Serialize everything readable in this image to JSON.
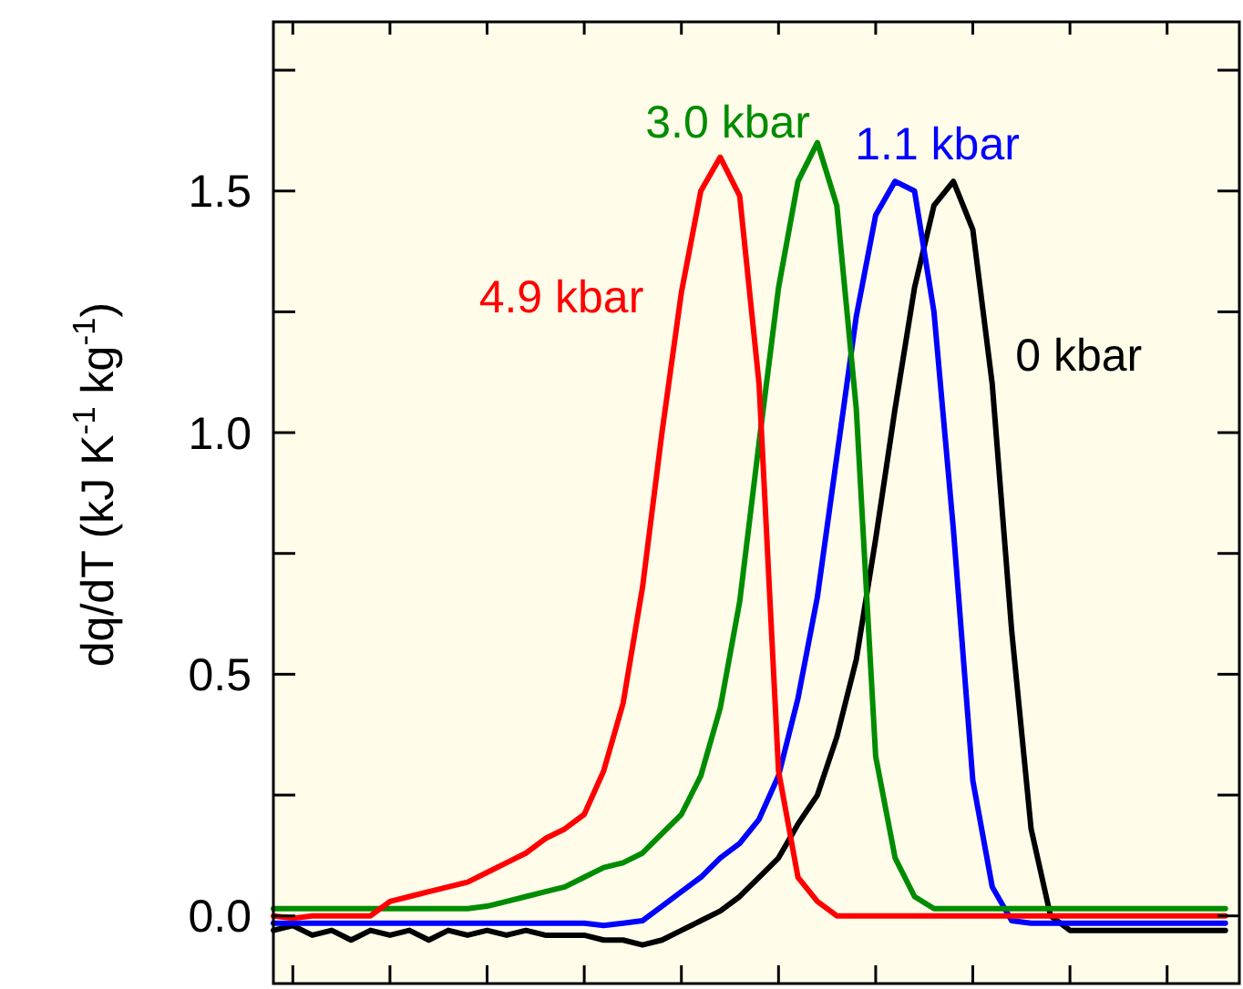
{
  "chart_data": {
    "type": "line",
    "ylabel": "dq/dT (kJ K$^{-1}$ kg$^{-1}$)",
    "categories": [
      null,
      null,
      null,
      null,
      null,
      null,
      null,
      null,
      null,
      null,
      null,
      null,
      null,
      null,
      null,
      null,
      null,
      null,
      null,
      null,
      null,
      null,
      null,
      null,
      null,
      null,
      null,
      null,
      null,
      null,
      null,
      null,
      null,
      null,
      null,
      null,
      null,
      null,
      null,
      null,
      null,
      null,
      null,
      null,
      null,
      null,
      null,
      null,
      null,
      null
    ],
    "ylim": [
      -0.14,
      1.85
    ],
    "yticks": [
      {
        "value": 0,
        "label": "0.0"
      },
      {
        "value": 0.25,
        "label": null
      },
      {
        "value": 0.5,
        "label": "0.5"
      },
      {
        "value": 0.75,
        "label": null
      },
      {
        "value": 1,
        "label": "1.0"
      },
      {
        "value": 1.25,
        "label": null
      },
      {
        "value": 1.5,
        "label": "1.5"
      },
      {
        "value": 1.75,
        "label": null
      }
    ],
    "tick_labels": "y",
    "grid": false,
    "marker": "none",
    "line_style": "solid",
    "series": [
      {
        "name": "0 kbar",
        "color": "#000000",
        "values": [
          -0.03,
          -0.02,
          -0.04,
          -0.03,
          -0.05,
          -0.03,
          -0.04,
          -0.03,
          -0.05,
          -0.03,
          -0.04,
          -0.03,
          -0.04,
          -0.03,
          -0.04,
          -0.04,
          -0.04,
          -0.05,
          -0.05,
          -0.06,
          -0.05,
          -0.03,
          -0.01,
          0.01,
          0.04,
          0.08,
          0.12,
          0.19,
          0.25,
          0.37,
          0.53,
          0.78,
          1.05,
          1.3,
          1.47,
          1.52,
          1.42,
          1.1,
          0.59,
          0.18,
          0.0,
          -0.03,
          -0.03,
          -0.03,
          -0.03,
          -0.03,
          -0.03,
          -0.03,
          -0.03,
          -0.03
        ]
      },
      {
        "name": "1.1 kbar",
        "color": "#0000ff",
        "values": [
          -0.015,
          -0.015,
          -0.015,
          -0.015,
          -0.015,
          -0.015,
          -0.015,
          -0.015,
          -0.015,
          -0.015,
          -0.015,
          -0.015,
          -0.015,
          -0.015,
          -0.015,
          -0.015,
          -0.015,
          -0.02,
          -0.015,
          -0.01,
          0.02,
          0.05,
          0.08,
          0.12,
          0.15,
          0.2,
          0.29,
          0.45,
          0.66,
          0.95,
          1.24,
          1.45,
          1.52,
          1.5,
          1.25,
          0.8,
          0.28,
          0.06,
          -0.01,
          -0.015,
          -0.015,
          -0.015,
          -0.015,
          -0.015,
          -0.015,
          -0.015,
          -0.015,
          -0.015,
          -0.015,
          -0.015
        ]
      },
      {
        "name": "3.0 kbar",
        "color": "#008c00",
        "values": [
          0.015,
          0.015,
          0.015,
          0.015,
          0.015,
          0.015,
          0.015,
          0.015,
          0.015,
          0.015,
          0.015,
          0.02,
          0.03,
          0.04,
          0.05,
          0.06,
          0.08,
          0.1,
          0.11,
          0.13,
          0.17,
          0.21,
          0.29,
          0.43,
          0.65,
          0.98,
          1.3,
          1.52,
          1.6,
          1.47,
          1.05,
          0.33,
          0.12,
          0.04,
          0.015,
          0.015,
          0.015,
          0.015,
          0.015,
          0.015,
          0.015,
          0.015,
          0.015,
          0.015,
          0.015,
          0.015,
          0.015,
          0.015,
          0.015,
          0.015
        ]
      },
      {
        "name": "4.9 kbar",
        "color": "#ff0000",
        "values": [
          0.0,
          -0.005,
          0.0,
          0.0,
          0.0,
          0.0,
          0.03,
          0.04,
          0.05,
          0.06,
          0.07,
          0.09,
          0.11,
          0.13,
          0.16,
          0.18,
          0.21,
          0.3,
          0.44,
          0.68,
          1.0,
          1.29,
          1.5,
          1.57,
          1.49,
          1.1,
          0.3,
          0.08,
          0.03,
          0.0,
          0.0,
          0.0,
          0.0,
          0.0,
          0.0,
          0.0,
          0.0,
          0.0,
          0.0,
          0.0,
          0.0,
          0.0,
          0.0,
          0.0,
          0.0,
          0.0,
          0.0,
          0.0,
          0.0,
          0.0
        ]
      }
    ]
  }
}
